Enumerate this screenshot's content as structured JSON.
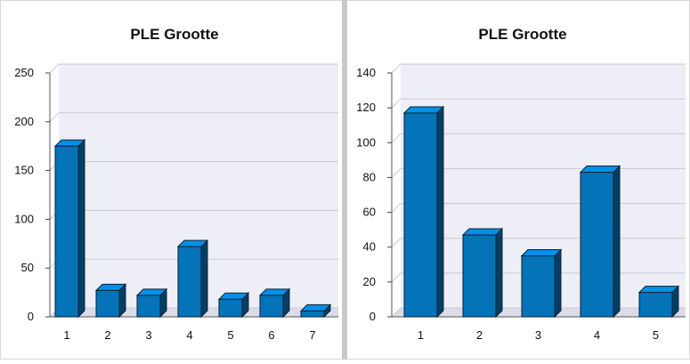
{
  "chart_data": [
    {
      "type": "bar",
      "title": "PLE Grootte",
      "xlabel": "",
      "ylabel": "",
      "categories": [
        "1",
        "2",
        "3",
        "4",
        "5",
        "6",
        "7"
      ],
      "values": [
        175,
        27,
        22,
        72,
        18,
        22,
        6
      ],
      "ylim": [
        0,
        250
      ],
      "yticks": [
        0,
        50,
        100,
        150,
        200,
        250
      ],
      "grid": true,
      "bar_color": "#0473b8",
      "plot_background": "#eeeef6",
      "grid_color": "#c8c8dc"
    },
    {
      "type": "bar",
      "title": "PLE Grootte",
      "xlabel": "",
      "ylabel": "",
      "categories": [
        "1",
        "2",
        "3",
        "4",
        "5"
      ],
      "values": [
        117,
        47,
        35,
        83,
        14
      ],
      "ylim": [
        0,
        140
      ],
      "yticks": [
        0,
        20,
        40,
        60,
        80,
        100,
        120,
        140
      ],
      "grid": true,
      "bar_color": "#0473b8",
      "plot_background": "#eeeef6",
      "grid_color": "#c8c8dc"
    }
  ]
}
